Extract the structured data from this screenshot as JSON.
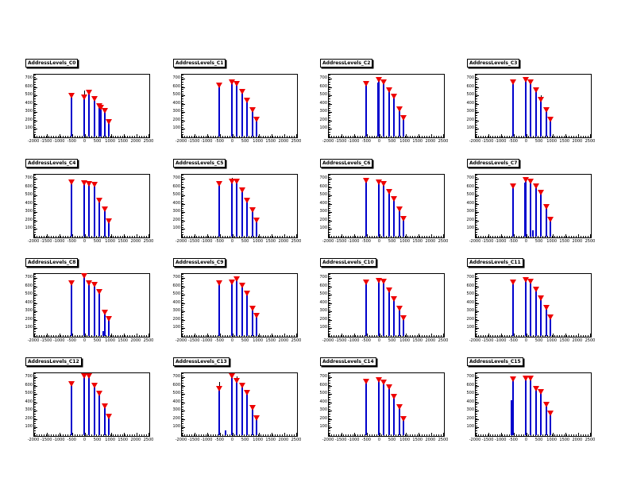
{
  "window": {
    "background": "#ffffff",
    "description": "ROOT canvas with 4x4 grid of address-level histograms"
  },
  "chart_data": {
    "type": "bar",
    "layout": {
      "rows": 4,
      "cols": 4,
      "grid": true
    },
    "title": "",
    "xlabel": "",
    "ylabel": "",
    "axis": {
      "xmin": -2000,
      "xmax": 2500,
      "ymin": 0,
      "ymax": 750,
      "xticks": [
        "-2000",
        "-1500",
        "-1000",
        "-500",
        "0",
        "500",
        "1000",
        "1500",
        "2000",
        "2500"
      ],
      "xtick_values": [
        -2000,
        -1500,
        -1000,
        -500,
        0,
        500,
        1000,
        1500,
        2000,
        2500
      ],
      "yticks": [
        "100",
        "200",
        "300",
        "400",
        "500",
        "600",
        "700"
      ],
      "ytick_values": [
        100,
        200,
        300,
        400,
        500,
        600,
        700
      ]
    },
    "colors": {
      "spike": "#0000cc",
      "marker": "#ee0000",
      "error_bar": "#000000",
      "frame": "#000000",
      "pad_background": "#ffffff"
    },
    "plots": [
      {
        "title": "AddressLevels_C0",
        "peaks": [
          {
            "x": -500,
            "v": 470
          },
          {
            "x": -20,
            "v": 460,
            "eb": 90
          },
          {
            "x": 160,
            "v": 515
          },
          {
            "x": 380,
            "v": 440
          },
          {
            "x": 570,
            "v": 350
          },
          {
            "x": 640,
            "v": 335
          },
          {
            "x": 800,
            "v": 290
          },
          {
            "x": 950,
            "v": 165
          }
        ]
      },
      {
        "title": "AddressLevels_C1",
        "peaks": [
          {
            "x": -500,
            "v": 600
          },
          {
            "x": -20,
            "v": 640
          },
          {
            "x": 160,
            "v": 620
          },
          {
            "x": 380,
            "v": 520
          },
          {
            "x": 570,
            "v": 420
          },
          {
            "x": 800,
            "v": 300
          },
          {
            "x": 950,
            "v": 190
          }
        ]
      },
      {
        "title": "AddressLevels_C2",
        "peaks": [
          {
            "x": -500,
            "v": 620
          },
          {
            "x": -60,
            "v": 650,
            "m": false
          },
          {
            "x": -20,
            "v": 660
          },
          {
            "x": 160,
            "v": 640
          },
          {
            "x": 380,
            "v": 540
          },
          {
            "x": 570,
            "v": 465
          },
          {
            "x": 800,
            "v": 315
          },
          {
            "x": 950,
            "v": 210
          }
        ]
      },
      {
        "title": "AddressLevels_C3",
        "peaks": [
          {
            "x": -500,
            "v": 640
          },
          {
            "x": -20,
            "v": 665
          },
          {
            "x": 160,
            "v": 640
          },
          {
            "x": 380,
            "v": 540
          },
          {
            "x": 570,
            "v": 430,
            "eb": 60
          },
          {
            "x": 800,
            "v": 300
          },
          {
            "x": 950,
            "v": 190
          }
        ]
      },
      {
        "title": "AddressLevels_C4",
        "peaks": [
          {
            "x": -500,
            "v": 640
          },
          {
            "x": -20,
            "v": 630
          },
          {
            "x": 160,
            "v": 615
          },
          {
            "x": 380,
            "v": 610
          },
          {
            "x": 570,
            "v": 420
          },
          {
            "x": 800,
            "v": 310
          },
          {
            "x": 950,
            "v": 175
          }
        ]
      },
      {
        "title": "AddressLevels_C5",
        "peaks": [
          {
            "x": -500,
            "v": 620
          },
          {
            "x": -20,
            "v": 645,
            "eb": 60
          },
          {
            "x": 160,
            "v": 650
          },
          {
            "x": 380,
            "v": 540
          },
          {
            "x": 570,
            "v": 420
          },
          {
            "x": 800,
            "v": 300
          },
          {
            "x": 950,
            "v": 180
          }
        ]
      },
      {
        "title": "AddressLevels_C6",
        "peaks": [
          {
            "x": -500,
            "v": 655
          },
          {
            "x": -20,
            "v": 640
          },
          {
            "x": 160,
            "v": 620
          },
          {
            "x": 380,
            "v": 520
          },
          {
            "x": 570,
            "v": 440
          },
          {
            "x": 800,
            "v": 310
          },
          {
            "x": 950,
            "v": 200
          }
        ]
      },
      {
        "title": "AddressLevels_C7",
        "peaks": [
          {
            "x": -500,
            "v": 585
          },
          {
            "x": -60,
            "v": 650,
            "m": false
          },
          {
            "x": -20,
            "v": 660
          },
          {
            "x": 160,
            "v": 650
          },
          {
            "x": 250,
            "v": 80,
            "m": false
          },
          {
            "x": 380,
            "v": 585
          },
          {
            "x": 570,
            "v": 510
          },
          {
            "x": 800,
            "v": 340
          },
          {
            "x": 950,
            "v": 190
          }
        ]
      },
      {
        "title": "AddressLevels_C8",
        "peaks": [
          {
            "x": -500,
            "v": 615
          },
          {
            "x": -20,
            "v": 700
          },
          {
            "x": 160,
            "v": 620
          },
          {
            "x": 380,
            "v": 595
          },
          {
            "x": 570,
            "v": 510
          },
          {
            "x": 740,
            "v": 60,
            "m": false
          },
          {
            "x": 800,
            "v": 265
          },
          {
            "x": 950,
            "v": 190
          }
        ]
      },
      {
        "title": "AddressLevels_C9",
        "peaks": [
          {
            "x": -500,
            "v": 615
          },
          {
            "x": -20,
            "v": 630
          },
          {
            "x": 160,
            "v": 660,
            "eb": 40
          },
          {
            "x": 380,
            "v": 585
          },
          {
            "x": 570,
            "v": 490
          },
          {
            "x": 800,
            "v": 315
          },
          {
            "x": 950,
            "v": 225
          }
        ]
      },
      {
        "title": "AddressLevels_C10",
        "peaks": [
          {
            "x": -500,
            "v": 630
          },
          {
            "x": -20,
            "v": 650
          },
          {
            "x": 160,
            "v": 640
          },
          {
            "x": 380,
            "v": 530
          },
          {
            "x": 570,
            "v": 430
          },
          {
            "x": 800,
            "v": 310
          },
          {
            "x": 950,
            "v": 200
          }
        ]
      },
      {
        "title": "AddressLevels_C11",
        "peaks": [
          {
            "x": -500,
            "v": 630
          },
          {
            "x": -20,
            "v": 655
          },
          {
            "x": 160,
            "v": 640
          },
          {
            "x": 380,
            "v": 540
          },
          {
            "x": 570,
            "v": 440
          },
          {
            "x": 800,
            "v": 320
          },
          {
            "x": 950,
            "v": 210
          }
        ]
      },
      {
        "title": "AddressLevels_C12",
        "peaks": [
          {
            "x": -500,
            "v": 600
          },
          {
            "x": -20,
            "v": 690
          },
          {
            "x": 160,
            "v": 690
          },
          {
            "x": 380,
            "v": 580
          },
          {
            "x": 570,
            "v": 480
          },
          {
            "x": 800,
            "v": 330
          },
          {
            "x": 950,
            "v": 210
          }
        ]
      },
      {
        "title": "AddressLevels_C13",
        "peaks": [
          {
            "x": -500,
            "v": 540,
            "eb": 100
          },
          {
            "x": -250,
            "v": 60,
            "m": false
          },
          {
            "x": -20,
            "v": 690
          },
          {
            "x": 160,
            "v": 640,
            "eb": 60
          },
          {
            "x": 380,
            "v": 580
          },
          {
            "x": 570,
            "v": 490
          },
          {
            "x": 800,
            "v": 315
          },
          {
            "x": 950,
            "v": 190
          }
        ]
      },
      {
        "title": "AddressLevels_C14",
        "peaks": [
          {
            "x": -500,
            "v": 630
          },
          {
            "x": -20,
            "v": 650
          },
          {
            "x": 160,
            "v": 620
          },
          {
            "x": 380,
            "v": 560
          },
          {
            "x": 570,
            "v": 450
          },
          {
            "x": 800,
            "v": 320
          },
          {
            "x": 950,
            "v": 180
          }
        ]
      },
      {
        "title": "AddressLevels_C15",
        "peaks": [
          {
            "x": -560,
            "v": 415,
            "m": false
          },
          {
            "x": -500,
            "v": 655
          },
          {
            "x": -20,
            "v": 660
          },
          {
            "x": 160,
            "v": 660
          },
          {
            "x": 380,
            "v": 545
          },
          {
            "x": 570,
            "v": 500
          },
          {
            "x": 800,
            "v": 355
          },
          {
            "x": 950,
            "v": 250
          }
        ]
      }
    ]
  }
}
